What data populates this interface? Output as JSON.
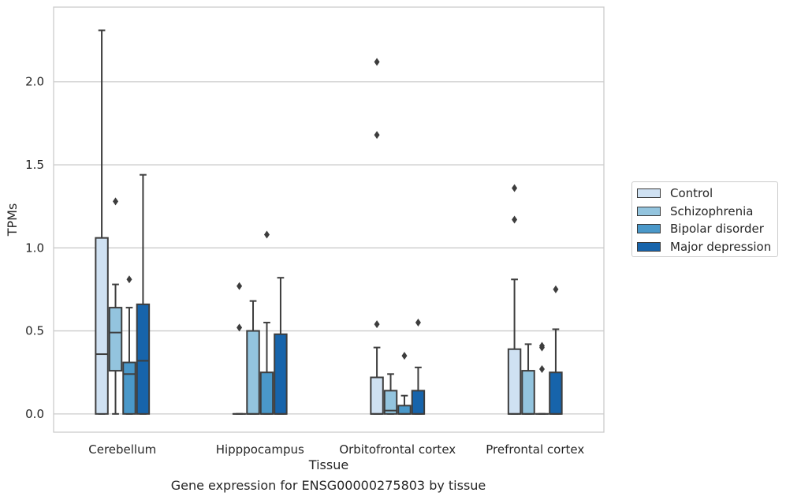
{
  "caption": "Gene expression for ENSG00000275803 by tissue",
  "chart_data": {
    "type": "box",
    "xlabel": "Tissue",
    "ylabel": "TPMs",
    "ylim": [
      -0.11,
      2.45
    ],
    "yticks": [
      "0.0",
      "0.5",
      "1.0",
      "1.5",
      "2.0"
    ],
    "grid": "horizontal",
    "legend_position": "right",
    "categories": [
      "Cerebellum",
      "Hipppocampus",
      "Orbitofrontal cortex",
      "Prefrontal cortex"
    ],
    "series": [
      {
        "name": "Control",
        "color": "#cfe1f2",
        "boxes": [
          {
            "q1": 0.0,
            "median": 0.36,
            "q3": 1.06,
            "whisker_low": 0.0,
            "whisker_high": 2.31,
            "outliers": []
          },
          {
            "q1": 0.0,
            "median": 0.0,
            "q3": 0.0,
            "whisker_low": 0.0,
            "whisker_high": 0.0,
            "outliers": [
              0.52,
              0.77
            ]
          },
          {
            "q1": 0.0,
            "median": 0.0,
            "q3": 0.22,
            "whisker_low": 0.0,
            "whisker_high": 0.4,
            "outliers": [
              0.54,
              1.68,
              2.12
            ]
          },
          {
            "q1": 0.0,
            "median": 0.0,
            "q3": 0.39,
            "whisker_low": 0.0,
            "whisker_high": 0.81,
            "outliers": [
              1.17,
              1.36
            ]
          }
        ]
      },
      {
        "name": "Schizophrenia",
        "color": "#93c4de",
        "boxes": [
          {
            "q1": 0.26,
            "median": 0.49,
            "q3": 0.64,
            "whisker_low": 0.0,
            "whisker_high": 0.78,
            "outliers": [
              1.28
            ]
          },
          {
            "q1": 0.0,
            "median": 0.0,
            "q3": 0.5,
            "whisker_low": 0.0,
            "whisker_high": 0.68,
            "outliers": []
          },
          {
            "q1": 0.0,
            "median": 0.02,
            "q3": 0.14,
            "whisker_low": 0.0,
            "whisker_high": 0.24,
            "outliers": []
          },
          {
            "q1": 0.0,
            "median": 0.0,
            "q3": 0.26,
            "whisker_low": 0.0,
            "whisker_high": 0.42,
            "outliers": []
          }
        ]
      },
      {
        "name": "Bipolar disorder",
        "color": "#4a98c9",
        "boxes": [
          {
            "q1": 0.0,
            "median": 0.24,
            "q3": 0.31,
            "whisker_low": 0.0,
            "whisker_high": 0.64,
            "outliers": [
              0.81
            ]
          },
          {
            "q1": 0.0,
            "median": 0.0,
            "q3": 0.25,
            "whisker_low": 0.0,
            "whisker_high": 0.55,
            "outliers": [
              1.08
            ]
          },
          {
            "q1": 0.0,
            "median": 0.0,
            "q3": 0.05,
            "whisker_low": 0.0,
            "whisker_high": 0.11,
            "outliers": [
              0.35
            ]
          },
          {
            "q1": 0.0,
            "median": 0.0,
            "q3": 0.0,
            "whisker_low": 0.0,
            "whisker_high": 0.0,
            "outliers": [
              0.27,
              0.4,
              0.41
            ]
          }
        ]
      },
      {
        "name": "Major depression",
        "color": "#1764ab",
        "boxes": [
          {
            "q1": 0.0,
            "median": 0.32,
            "q3": 0.66,
            "whisker_low": 0.0,
            "whisker_high": 1.44,
            "outliers": []
          },
          {
            "q1": 0.0,
            "median": 0.0,
            "q3": 0.48,
            "whisker_low": 0.0,
            "whisker_high": 0.82,
            "outliers": []
          },
          {
            "q1": 0.0,
            "median": 0.0,
            "q3": 0.14,
            "whisker_low": 0.0,
            "whisker_high": 0.28,
            "outliers": [
              0.55
            ]
          },
          {
            "q1": 0.0,
            "median": 0.0,
            "q3": 0.25,
            "whisker_low": 0.0,
            "whisker_high": 0.51,
            "outliers": [
              0.75
            ]
          }
        ]
      }
    ]
  }
}
